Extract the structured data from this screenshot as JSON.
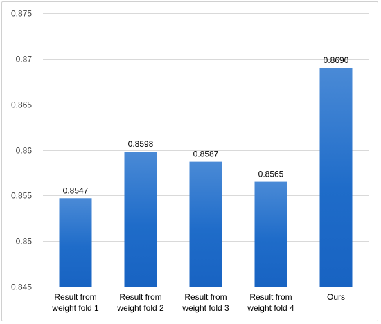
{
  "chart_data": {
    "type": "bar",
    "categories": [
      [
        "Result from",
        "weight fold 1"
      ],
      [
        "Result from",
        "weight fold 2"
      ],
      [
        "Result from",
        "weight fold 3"
      ],
      [
        "Result from",
        "weight fold 4"
      ],
      [
        "Ours"
      ]
    ],
    "values": [
      0.8547,
      0.8598,
      0.8587,
      0.8565,
      0.869
    ],
    "data_labels": [
      "0.8547",
      "0.8598",
      "0.8587",
      "0.8565",
      "0.8690"
    ],
    "ylim": [
      0.845,
      0.875
    ],
    "yticks": [
      0.845,
      0.85,
      0.855,
      0.86,
      0.865,
      0.87,
      0.875
    ],
    "ytick_labels": [
      "0.845",
      "0.85",
      "0.855",
      "0.86",
      "0.865",
      "0.87",
      "0.875"
    ],
    "grid": true,
    "legend": "none",
    "colors": {
      "bar_top": "#4a8ad6",
      "bar_bottom": "#1863c2",
      "grid": "#d9d9d9",
      "axis": "#bfbfbf"
    }
  }
}
